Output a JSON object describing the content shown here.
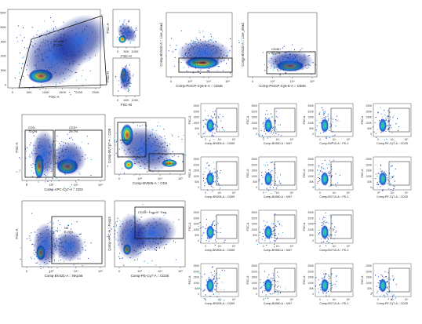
{
  "chart_data": {
    "type": "scatter",
    "description_kind": "flow-cytometry-density-plots",
    "density_colors": [
      "#0b1f8f",
      "#1e5bd8",
      "#25b7d6",
      "#41c96a",
      "#e7e13a",
      "#f59a20",
      "#e7361a"
    ],
    "gate_color": "#111111",
    "panels": [
      {
        "id": "p1",
        "xlabel": "FSC-A",
        "ylabel": "SSC-A",
        "xticks": [
          "0",
          "50K",
          "100K",
          "150K",
          "200K",
          "250K"
        ],
        "yticks": [
          "0",
          "50K",
          "100K",
          "150K",
          "200K",
          "250K"
        ],
        "gates": [
          {
            "label": "All cells",
            "value": "57.7%"
          }
        ]
      },
      {
        "id": "p2",
        "xlabel": "FSC-H",
        "ylabel": "FSC-A",
        "xticks": [
          "0",
          "50K",
          "100K"
        ],
        "yticks": [],
        "gates": []
      },
      {
        "id": "p3",
        "xlabel": "FSC-W",
        "ylabel": "FSC-H",
        "xticks": [
          "0",
          "50K",
          "100K"
        ],
        "yticks": [],
        "gates": []
      },
      {
        "id": "p4",
        "xlabel": "Comp-PerCP-Cy5-5-A :: CD45",
        "ylabel": "Comp-BV510-A :: Live_dead",
        "xticks": [
          "0",
          "10³",
          "10⁴",
          "10⁵"
        ],
        "yticks": [],
        "gates": [
          {
            "label": "Live cells",
            "value": ""
          }
        ]
      },
      {
        "id": "p5",
        "xlabel": "Comp-PerCP-Cy5-5-A :: CD45",
        "ylabel": "Comp-BV510-A :: Live_dead",
        "xticks": [
          "0",
          "10³",
          "10⁴",
          "10⁵"
        ],
        "yticks": [],
        "gates": [
          {
            "label": "CD45+",
            "value": "96.0%"
          }
        ]
      },
      {
        "id": "p6",
        "xlabel": "Comp-APC-Cy7-A :: CD3",
        "ylabel": "FSC-A",
        "xticks": [
          "0",
          "10³",
          "10⁴",
          "10⁵"
        ],
        "yticks": [],
        "gates": [
          {
            "label": "CD3-",
            "value": "70.0%"
          },
          {
            "label": "CD3+",
            "value": "29.7%"
          }
        ]
      },
      {
        "id": "p7",
        "xlabel": "Comp-BV605-A :: CD4",
        "ylabel": "Comp-BV737-A :: CD8",
        "xticks": [
          "0",
          "10³",
          "10⁴",
          "10⁵"
        ],
        "yticks": [],
        "gates": [
          {
            "label": "",
            "value": "15.8%"
          },
          {
            "label": "",
            "value": "66.9%"
          }
        ]
      },
      {
        "id": "p8",
        "xlabel": "Comp-BV421-A :: NKp46",
        "ylabel": "FSC-A",
        "xticks": [
          "0",
          "10³",
          "10⁴",
          "10⁵"
        ],
        "yticks": [],
        "gates": [
          {
            "label": "NK",
            "value": "2.79%"
          }
        ]
      },
      {
        "id": "p9",
        "xlabel": "Comp-PE-Cy7-A :: CD25",
        "ylabel": "Comp-APC-A :: Foxp3",
        "xticks": [
          "0",
          "10³",
          "10⁴",
          "10⁵"
        ],
        "yticks": [],
        "gates": [
          {
            "label": "CD25+ Foxp3+ Treg",
            "value": ""
          }
        ]
      }
    ],
    "small_panel_rows": [
      {
        "y_tick_labels": [
          "250K",
          "200K",
          "150K",
          "100K",
          "50K",
          "0"
        ],
        "panels": [
          {
            "id": "s1",
            "xlabel": "Comp-BV605-A :: CD69",
            "ylabel": "FSC-A",
            "xticks": [
              "0",
              "10³",
              "10⁵"
            ]
          },
          {
            "id": "s2",
            "xlabel": "Comp-BV650-A :: Ki67",
            "ylabel": "FSC-A",
            "xticks": [
              "0",
              "10³",
              "10⁵"
            ]
          },
          {
            "id": "s3",
            "xlabel": "Comp-BV710-A :: PD-1",
            "ylabel": "FSC-A",
            "xticks": [
              "0",
              "10³",
              "10⁵"
            ]
          },
          {
            "id": "s4",
            "xlabel": "Comp-PE-Cy7-A :: CD25",
            "ylabel": "FSC-A",
            "xticks": [
              "0",
              "10³",
              "10⁵"
            ]
          }
        ]
      },
      {
        "y_tick_labels": [
          "250K",
          "200K",
          "150K",
          "100K",
          "50K",
          "0"
        ],
        "panels": [
          {
            "id": "s5",
            "xlabel": "Comp-BV605-A :: CD69",
            "ylabel": "FSC-A",
            "xticks": [
              "0",
              "10³",
              "10⁵"
            ]
          },
          {
            "id": "s6",
            "xlabel": "Comp-BV650-A :: Ki67",
            "ylabel": "FSC-A",
            "xticks": [
              "0",
              "10³",
              "10⁵"
            ]
          },
          {
            "id": "s7",
            "xlabel": "Comp-BV710-A :: PD-1",
            "ylabel": "FSC-A",
            "xticks": [
              "0",
              "10³",
              "10⁵"
            ]
          },
          {
            "id": "s8",
            "xlabel": "Comp-PE-Cy7-A :: CD25",
            "ylabel": "FSC-A",
            "xticks": [
              "0",
              "10³",
              "10⁵"
            ]
          }
        ]
      },
      {
        "y_tick_labels": [
          "250K",
          "200K",
          "150K",
          "100K",
          "50K",
          "0"
        ],
        "panels": [
          {
            "id": "s9",
            "xlabel": "Comp-BV605-A :: CD69",
            "ylabel": "FSC-A",
            "xticks": [
              "0",
              "10³",
              "10⁵"
            ]
          },
          {
            "id": "s10",
            "xlabel": "Comp-BV650-A :: Ki67",
            "ylabel": "FSC-A",
            "xticks": [
              "0",
              "10³",
              "10⁵"
            ]
          },
          {
            "id": "s11",
            "xlabel": "Comp-BV710-A :: PD-1",
            "ylabel": "FSC-A",
            "xticks": [
              "0",
              "10³",
              "10⁵"
            ]
          }
        ]
      },
      {
        "y_tick_labels": [
          "250K",
          "200K",
          "150K",
          "100K",
          "50K",
          "0"
        ],
        "panels": [
          {
            "id": "s12",
            "xlabel": "Comp-BV605-A :: CD69",
            "ylabel": "FSC-A",
            "xticks": [
              "0",
              "10³",
              "10⁵"
            ]
          },
          {
            "id": "s13",
            "xlabel": "Comp-BV650-A :: Ki67",
            "ylabel": "FSC-A",
            "xticks": [
              "0",
              "10³",
              "10⁵"
            ]
          },
          {
            "id": "s14",
            "xlabel": "Comp-BV710-A :: PD-1",
            "ylabel": "FSC-A",
            "xticks": [
              "0",
              "10³",
              "10⁵"
            ]
          },
          {
            "id": "s15",
            "xlabel": "Comp-PE-Cy7-A :: CD25",
            "ylabel": "FSC-A",
            "xticks": [
              "0",
              "10³",
              "10⁵"
            ]
          }
        ]
      }
    ]
  }
}
